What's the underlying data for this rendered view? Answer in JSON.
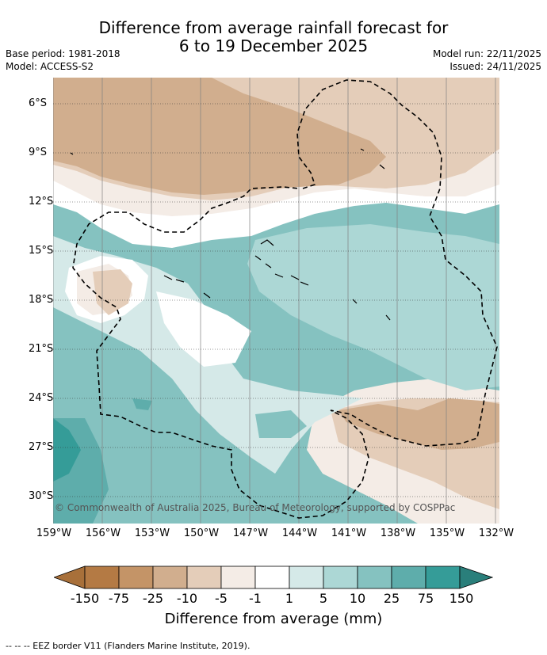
{
  "title_line1": "Difference from average rainfall forecast for",
  "title_line2": "6 to 19 December 2025",
  "base_period": "Base period: 1981-2018",
  "model": "Model: ACCESS-S2",
  "model_run": "Model run: 22/11/2025",
  "issued": "Issued: 24/11/2025",
  "latitudes": [
    "6°S",
    "9°S",
    "12°S",
    "15°S",
    "18°S",
    "21°S",
    "24°S",
    "27°S",
    "30°S"
  ],
  "longitudes": [
    "159°W",
    "156°W",
    "153°W",
    "150°W",
    "147°W",
    "144°W",
    "141°W",
    "138°W",
    "135°W",
    "132°W"
  ],
  "copyright": "© Commonwealth of Australia 2025, Bureau of Meteorology, supported by COSPPac",
  "colorbar": {
    "labels": [
      "-150",
      "-75",
      "-25",
      "-10",
      "-5",
      "-1",
      "1",
      "5",
      "10",
      "25",
      "75",
      "150"
    ],
    "colors": [
      "#a8703a",
      "#b47a44",
      "#c49467",
      "#d1ae8e",
      "#e4cdb9",
      "#f4ece6",
      "#ffffff",
      "#d5e9e8",
      "#acd7d5",
      "#85c2c0",
      "#5eadab",
      "#359c98",
      "#2a7f7b"
    ],
    "title": "Difference from average (mm)"
  },
  "footer": "--  --  -- EEZ border V11 (Flanders Marine Institute, 2019)."
}
